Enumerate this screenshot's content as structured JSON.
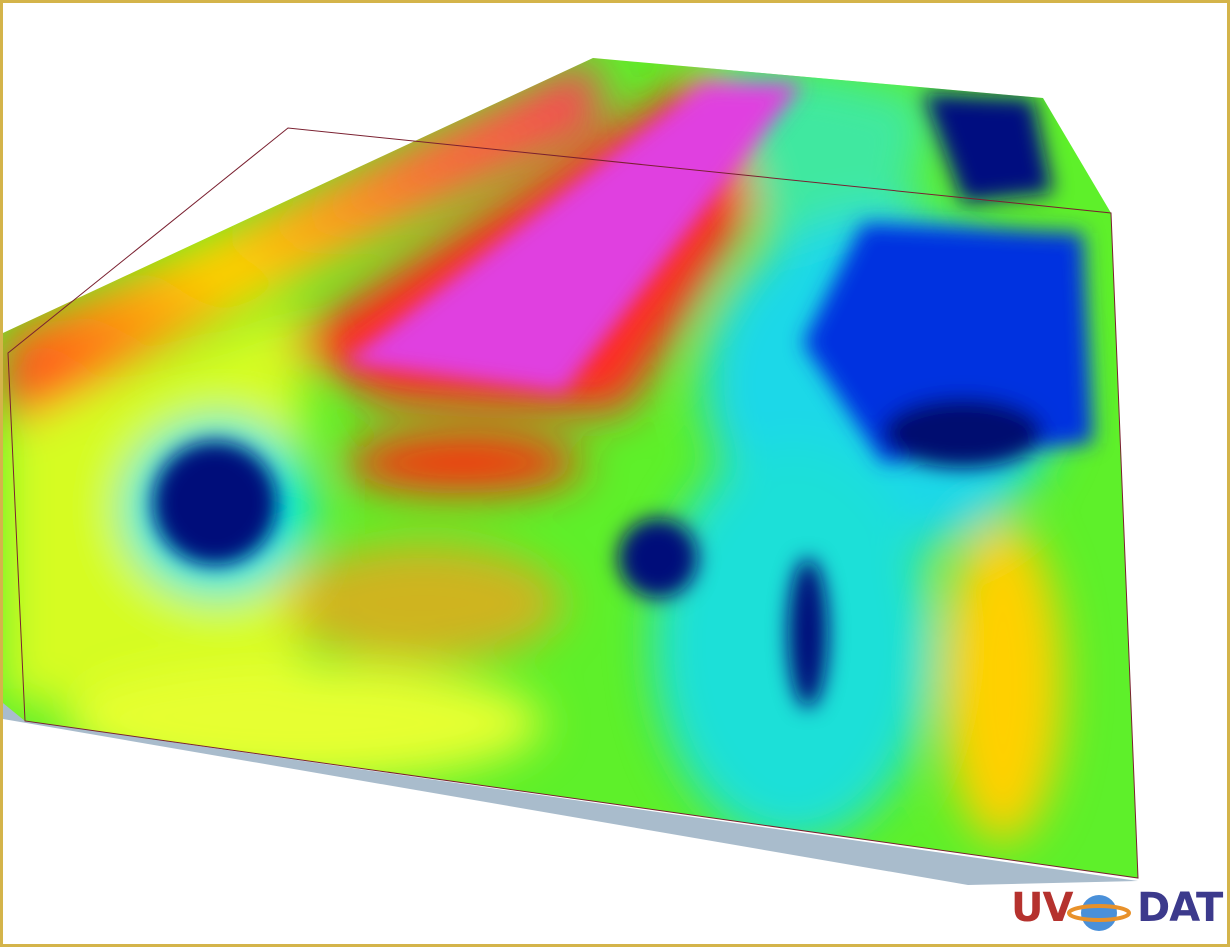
{
  "logo": {
    "left": "UV",
    "right": "DAT"
  }
}
